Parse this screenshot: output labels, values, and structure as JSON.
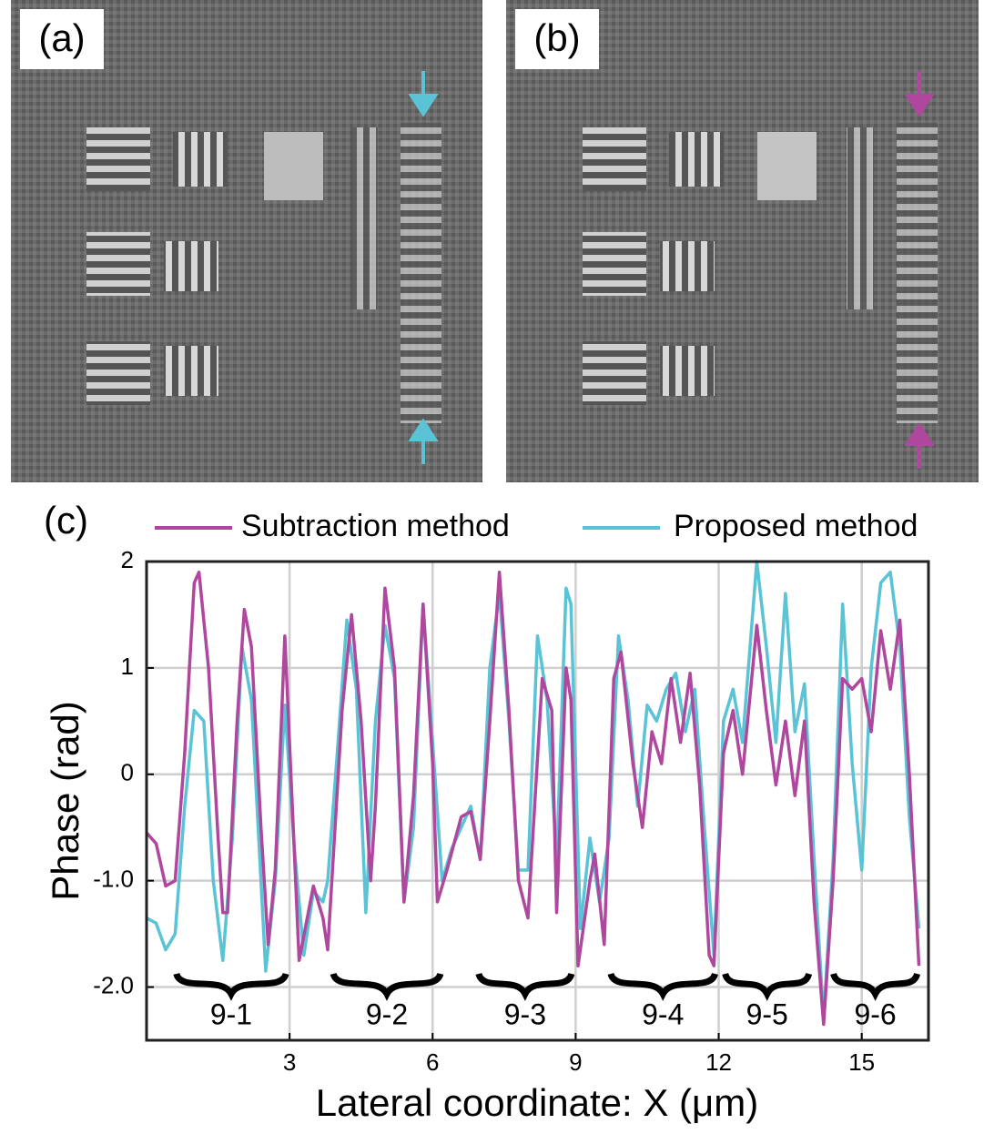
{
  "panel_labels": [
    "(a)",
    "(b)"
  ],
  "chart_data": {
    "type": "line",
    "panel_label": "(c)",
    "xlabel": "Lateral coordinate: X (μm)",
    "ylabel": "Phase (rad)",
    "xlim": [
      0,
      16.4
    ],
    "ylim": [
      -2.5,
      2
    ],
    "xticks": [
      3,
      6,
      9,
      12,
      15
    ],
    "yticks": [
      2,
      1,
      0,
      {
        "value": -1,
        "label": "-1.0"
      },
      {
        "value": -2,
        "label": "-2.0"
      }
    ],
    "grid": true,
    "legend": "top",
    "series": [
      {
        "name": "Subtraction method",
        "color": "#b0479e",
        "x": [
          0,
          0.2,
          0.4,
          0.6,
          0.8,
          0.9,
          1.0,
          1.1,
          1.3,
          1.5,
          1.6,
          1.7,
          1.9,
          2.05,
          2.2,
          2.4,
          2.55,
          2.7,
          2.8,
          2.9,
          3.2,
          3.5,
          3.7,
          3.8,
          4.1,
          4.3,
          4.5,
          4.7,
          4.8,
          5.0,
          5.2,
          5.4,
          5.6,
          5.8,
          6.0,
          6.1,
          6.3,
          6.6,
          6.8,
          7.0,
          7.2,
          7.4,
          7.6,
          7.8,
          8.0,
          8.3,
          8.5,
          8.6,
          8.8,
          8.9,
          9.05,
          9.3,
          9.4,
          9.6,
          9.8,
          9.95,
          10.2,
          10.4,
          10.6,
          10.8,
          11.0,
          11.2,
          11.4,
          11.6,
          11.8,
          11.9,
          12.1,
          12.3,
          12.5,
          12.8,
          13.0,
          13.2,
          13.4,
          13.6,
          13.8,
          14.0,
          14.2,
          14.4,
          14.6,
          14.8,
          15.0,
          15.2,
          15.4,
          15.6,
          15.8,
          16.0,
          16.2
        ],
        "values": [
          -0.55,
          -0.65,
          -1.05,
          -1.0,
          0.2,
          1.0,
          1.8,
          1.9,
          1.0,
          -0.6,
          -1.3,
          -1.3,
          0.5,
          1.55,
          1.2,
          -0.5,
          -1.6,
          -0.9,
          0.2,
          1.3,
          -1.75,
          -1.05,
          -1.35,
          -1.65,
          0.6,
          1.5,
          0.5,
          -1.0,
          -0.3,
          1.75,
          1.0,
          -1.2,
          -0.2,
          1.6,
          0.1,
          -1.2,
          -0.9,
          -0.4,
          -0.35,
          -0.8,
          0.5,
          1.9,
          0.6,
          -1.0,
          -1.35,
          0.9,
          0.6,
          -1.3,
          1.0,
          0.7,
          -1.8,
          -1.0,
          -0.75,
          -1.6,
          0.9,
          1.15,
          0.1,
          -0.5,
          0.4,
          0.1,
          0.9,
          0.3,
          0.95,
          -0.1,
          -1.7,
          -1.8,
          0.2,
          0.6,
          0.0,
          1.4,
          0.6,
          -0.1,
          0.5,
          -0.2,
          0.5,
          -1.2,
          -2.35,
          -1.0,
          0.9,
          0.8,
          0.9,
          0.4,
          1.35,
          0.8,
          1.45,
          0.0,
          -1.8
        ]
      },
      {
        "name": "Proposed method",
        "color": "#5bc3d6",
        "x": [
          0,
          0.2,
          0.4,
          0.6,
          0.8,
          1.0,
          1.2,
          1.4,
          1.6,
          1.8,
          2.0,
          2.2,
          2.4,
          2.5,
          2.7,
          2.9,
          3.1,
          3.3,
          3.5,
          3.7,
          3.8,
          4.0,
          4.2,
          4.4,
          4.6,
          4.8,
          5.0,
          5.2,
          5.4,
          5.6,
          5.8,
          6.0,
          6.2,
          6.4,
          6.6,
          6.8,
          7.0,
          7.2,
          7.4,
          7.6,
          7.8,
          8.0,
          8.2,
          8.4,
          8.6,
          8.8,
          8.9,
          9.1,
          9.3,
          9.5,
          9.7,
          9.9,
          10.1,
          10.3,
          10.5,
          10.7,
          10.9,
          11.1,
          11.3,
          11.5,
          11.7,
          11.9,
          12.1,
          12.3,
          12.5,
          12.8,
          13.0,
          13.2,
          13.4,
          13.6,
          13.8,
          14.0,
          14.2,
          14.4,
          14.6,
          14.8,
          15.0,
          15.2,
          15.4,
          15.6,
          15.8,
          16.0,
          16.2
        ],
        "values": [
          -1.35,
          -1.4,
          -1.65,
          -1.5,
          -0.3,
          0.6,
          0.5,
          -1.0,
          -1.75,
          -0.6,
          1.2,
          0.7,
          -1.0,
          -1.85,
          -1.0,
          0.65,
          -0.7,
          -1.7,
          -1.1,
          -1.2,
          -1.0,
          0.2,
          1.45,
          0.8,
          -1.3,
          0.5,
          1.4,
          0.9,
          -1.2,
          -0.5,
          1.6,
          0.3,
          -1.0,
          -0.7,
          -0.5,
          -0.3,
          -0.8,
          1.0,
          1.7,
          0.5,
          -0.9,
          -0.9,
          1.3,
          0.7,
          -0.8,
          1.75,
          1.6,
          -1.45,
          -0.6,
          -1.2,
          -0.6,
          1.3,
          0.7,
          -0.3,
          0.65,
          0.5,
          0.8,
          0.95,
          0.4,
          0.8,
          -0.5,
          -1.7,
          0.5,
          0.8,
          0.3,
          2.0,
          1.2,
          0.3,
          1.7,
          0.4,
          0.85,
          -0.8,
          -2.3,
          -0.8,
          1.6,
          0.1,
          -0.9,
          1.0,
          1.8,
          1.9,
          1.2,
          -0.4,
          -1.45
        ]
      }
    ],
    "groups": [
      {
        "label": "9-1",
        "start": 0.55,
        "end": 3.0
      },
      {
        "label": "9-2",
        "start": 3.84,
        "end": 6.24
      },
      {
        "label": "9-3",
        "start": 6.89,
        "end": 8.99
      },
      {
        "label": "9-4",
        "start": 9.66,
        "end": 12.0
      },
      {
        "label": "9-5",
        "start": 12.06,
        "end": 13.97
      },
      {
        "label": "9-6",
        "start": 14.33,
        "end": 16.24
      }
    ]
  }
}
